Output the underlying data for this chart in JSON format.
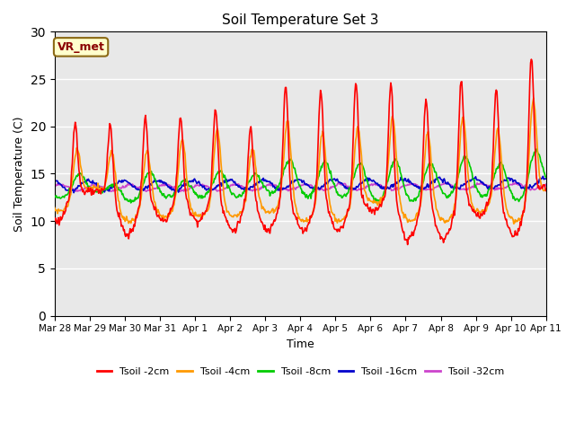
{
  "title": "Soil Temperature Set 3",
  "xlabel": "Time",
  "ylabel": "Soil Temperature (C)",
  "ylim": [
    0,
    30
  ],
  "yticks": [
    0,
    5,
    10,
    15,
    20,
    25,
    30
  ],
  "plot_bg_color": "#e8e8e8",
  "fig_bg_color": "#ffffff",
  "annotation_text": "VR_met",
  "series_colors": [
    "#ff0000",
    "#ff9900",
    "#00cc00",
    "#0000cc",
    "#cc44cc"
  ],
  "series_labels": [
    "Tsoil -2cm",
    "Tsoil -4cm",
    "Tsoil -8cm",
    "Tsoil -16cm",
    "Tsoil -32cm"
  ],
  "xtick_labels": [
    "Mar 28",
    "Mar 29",
    "Mar 30",
    "Mar 31",
    "Apr 1",
    "Apr 2",
    "Apr 3",
    "Apr 4",
    "Apr 5",
    "Apr 6",
    "Apr 7",
    "Apr 8",
    "Apr 9",
    "Apr 10",
    "Apr 11"
  ],
  "line_width": 1.2,
  "n_days": 14,
  "pts_per_day": 48
}
